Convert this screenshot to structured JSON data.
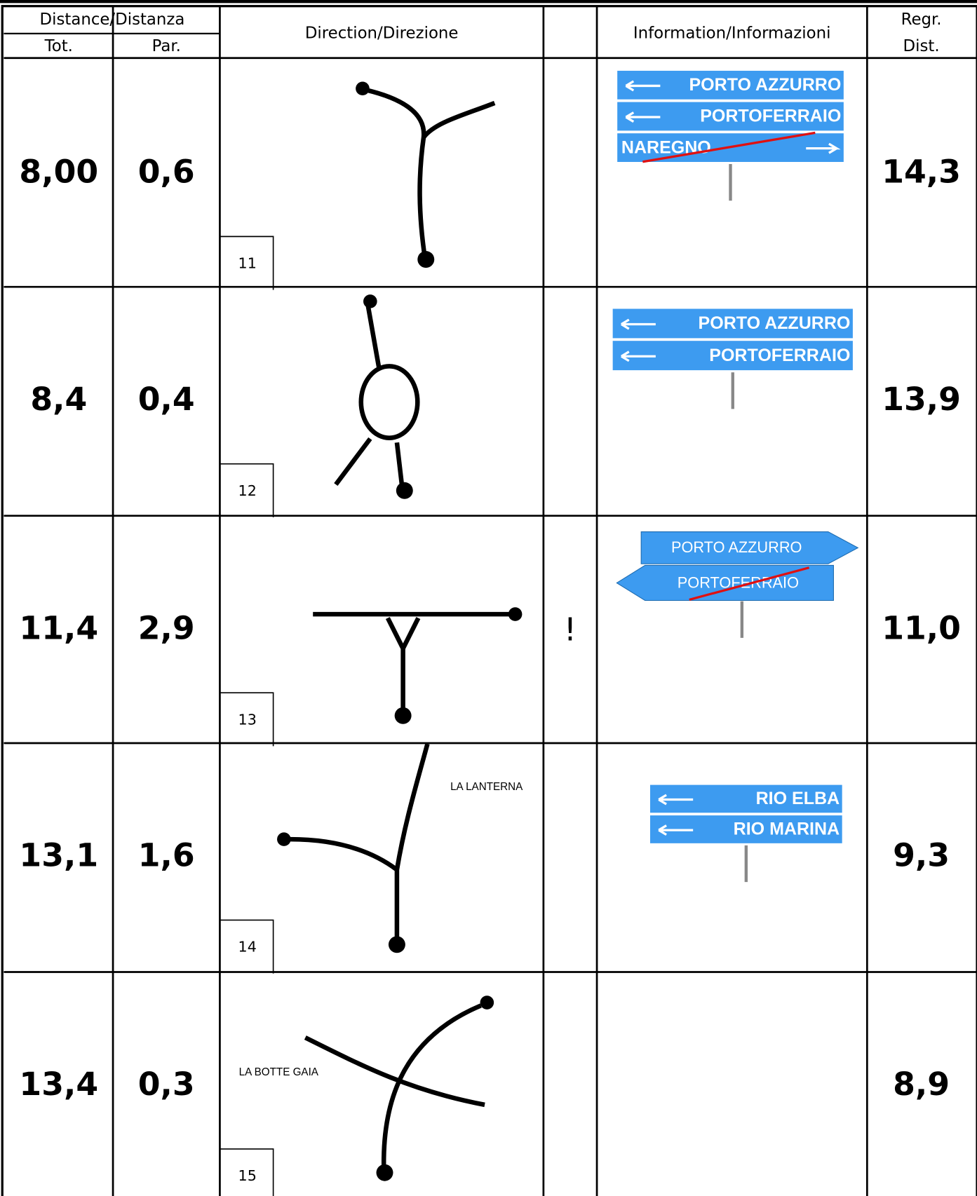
{
  "header": {
    "distance": "Distance/Distanza",
    "tot": "Tot.",
    "par": "Par.",
    "direction": "Direction/Direzione",
    "information": "Information/Informazioni",
    "regr_line1": "Regr.",
    "regr_line2": "Dist."
  },
  "rows": [
    {
      "tot": "8,00",
      "par": "0,6",
      "number": "11",
      "signs": [
        "PORTO AZZURRO",
        "PORTOFERRAIO",
        "NAREGNO"
      ],
      "regr": "14,3"
    },
    {
      "tot": "8,4",
      "par": "0,4",
      "number": "12",
      "signs": [
        "PORTO AZZURRO",
        "PORTOFERRAIO"
      ],
      "regr": "13,9"
    },
    {
      "tot": "11,4",
      "par": "2,9",
      "number": "13",
      "note": "!",
      "signs": [
        "PORTO AZZURRO",
        "PORTOFERRAIO"
      ],
      "regr": "11,0"
    },
    {
      "tot": "13,1",
      "par": "1,6",
      "number": "14",
      "labels": [
        "LA LANTERNA"
      ],
      "signs": [
        "RIO ELBA",
        "RIO MARINA"
      ],
      "regr": "9,3"
    },
    {
      "tot": "13,4",
      "par": "0,3",
      "number": "15",
      "labels": [
        "LA BOTTE GAIA"
      ],
      "regr": "8,9"
    }
  ]
}
